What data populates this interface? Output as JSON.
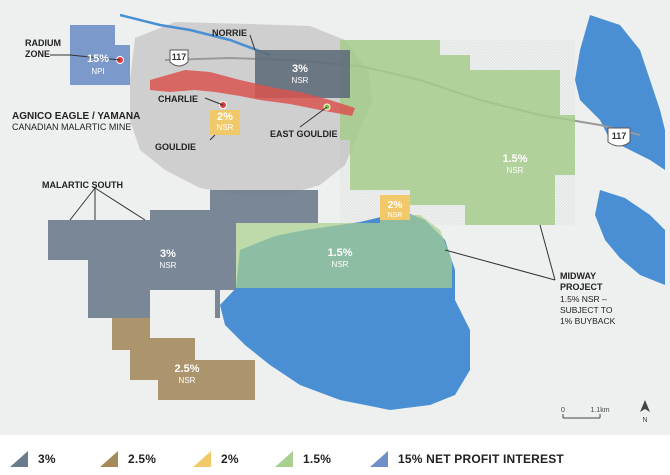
{
  "map": {
    "labels": {
      "radium_zone": [
        "RADIUM",
        "ZONE"
      ],
      "norrie": "NORRIE",
      "charlie": "CHARLIE",
      "gouldie": "GOULDIE",
      "east_gouldie": "EAST GOULDIE",
      "agnico_line1": "AGNICO EAGLE / YAMANA",
      "agnico_line2": "CANADIAN MALARTIC MINE",
      "malartic_south": "MALARTIC SOUTH",
      "midway_line1": "MIDWAY",
      "midway_line2": "PROJECT",
      "midway_line3": "1.5% NSR –",
      "midway_line4": "SUBJECT TO",
      "midway_line5": "1% BUYBACK"
    },
    "royalties": {
      "radium": {
        "value": "15%",
        "unit": "NPI"
      },
      "norrie": {
        "value": "3%",
        "unit": "NSR"
      },
      "gouldie": {
        "value": "2%",
        "unit": "NSR"
      },
      "east_block": {
        "value": "1.5%",
        "unit": "NSR"
      },
      "small_yellow": {
        "value": "2%",
        "unit": "NSR"
      },
      "midway_south": {
        "value": "1.5%",
        "unit": "NSR"
      },
      "malartic_south": {
        "value": "3%",
        "unit": "NSR"
      },
      "bottom": {
        "value": "2.5%",
        "unit": "NSR"
      }
    },
    "highway_shields": [
      "117",
      "117"
    ],
    "scale_bar": {
      "start": "0",
      "end": "1.1km"
    },
    "north_arrow": "N",
    "colors": {
      "gray_3pct": "#6b7b8c",
      "brown_2_5pct": "#a48b5e",
      "yellow_2pct": "#f2c96a",
      "green_1_5pct": "#a9d08e",
      "blue_npi": "#6f8fc7",
      "water": "#4a8fd3",
      "mine_pit": "#d9534f",
      "mine_area": "#cfcfcf"
    }
  },
  "legend": {
    "items": [
      {
        "label": "3%",
        "color": "#6b7b8c"
      },
      {
        "label": "2.5%",
        "color": "#a48b5e"
      },
      {
        "label": "2%",
        "color": "#f2c96a"
      },
      {
        "label": "1.5%",
        "color": "#a9d08e"
      },
      {
        "label": "15% NET PROFIT INTEREST",
        "color": "#6f8fc7"
      }
    ]
  }
}
